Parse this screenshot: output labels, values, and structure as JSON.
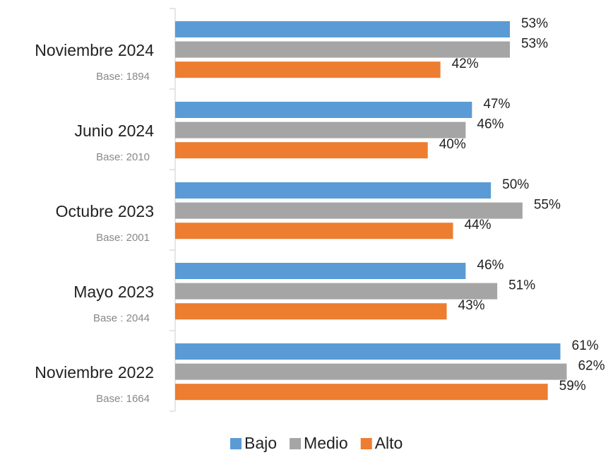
{
  "chart_data": {
    "type": "bar",
    "orientation": "horizontal",
    "categories": [
      "Noviembre 2024",
      "Junio 2024",
      "Octubre 2023",
      "Mayo 2023",
      "Noviembre 2022"
    ],
    "bases": [
      "Base: 1894",
      "Base: 2010",
      "Base: 2001",
      "Base : 2044",
      "Base: 1664"
    ],
    "series": [
      {
        "name": "Bajo",
        "color": "#5b9bd5",
        "values": [
          53,
          47,
          50,
          46,
          61
        ],
        "value_labels": [
          "53%",
          "47%",
          "50%",
          "46%",
          "61%"
        ]
      },
      {
        "name": "Medio",
        "color": "#a5a5a5",
        "values": [
          53,
          46,
          55,
          51,
          62
        ],
        "value_labels": [
          "53%",
          "46%",
          "55%",
          "51%",
          "62%"
        ]
      },
      {
        "name": "Alto",
        "color": "#ed7d31",
        "values": [
          42,
          40,
          44,
          43,
          59
        ],
        "value_labels": [
          "42%",
          "40%",
          "44%",
          "43%",
          "59%"
        ]
      }
    ],
    "legend": "bottom"
  }
}
